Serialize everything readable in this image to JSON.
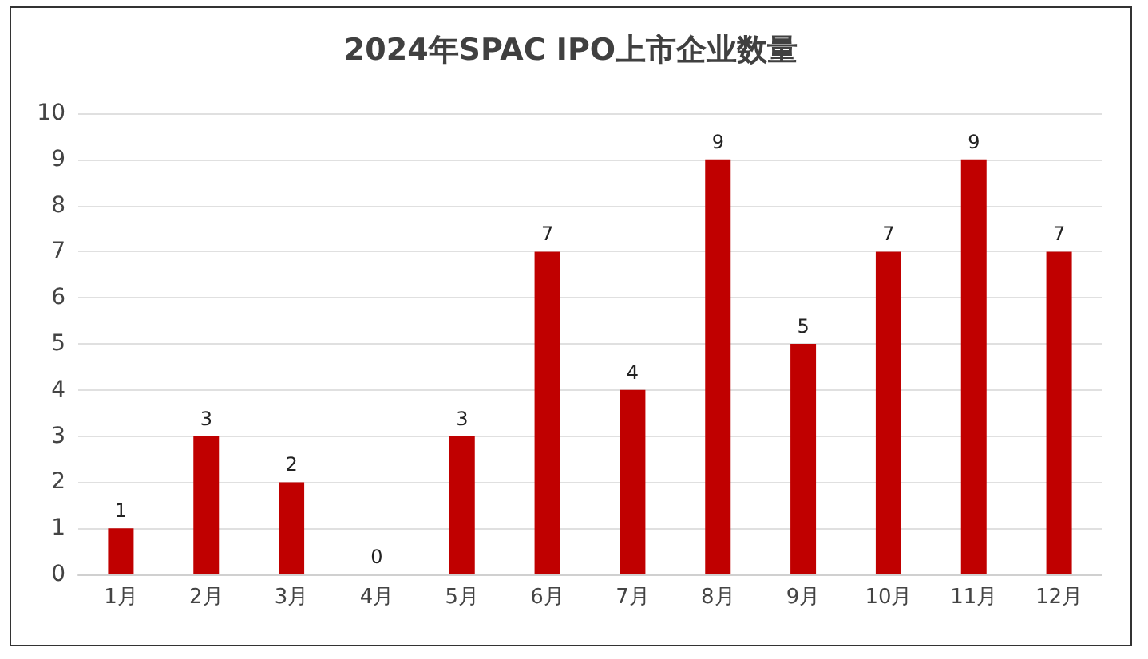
{
  "chart_data": {
    "type": "bar",
    "title": "2024年SPAC IPO上市企业数量",
    "categories": [
      "1月",
      "2月",
      "3月",
      "4月",
      "5月",
      "6月",
      "7月",
      "8月",
      "9月",
      "10月",
      "11月",
      "12月"
    ],
    "values": [
      1,
      3,
      2,
      0,
      3,
      7,
      4,
      9,
      5,
      7,
      9,
      7
    ],
    "color": "#c00000",
    "ylim": [
      0,
      10
    ],
    "yticks": [
      0,
      1,
      2,
      3,
      4,
      5,
      6,
      7,
      8,
      9,
      10
    ],
    "grid": "y",
    "data_labels": true
  }
}
